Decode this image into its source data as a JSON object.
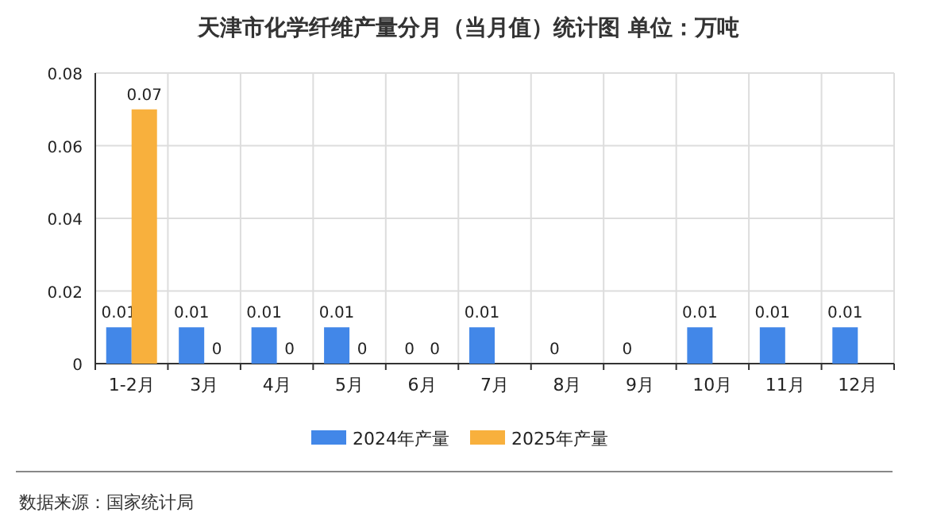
{
  "chart_data": {
    "type": "bar",
    "title": "天津市化学纤维产量分月（当月值）统计图 单位：万吨",
    "categories": [
      "1-2月",
      "3月",
      "4月",
      "5月",
      "6月",
      "7月",
      "8月",
      "9月",
      "10月",
      "11月",
      "12月"
    ],
    "series": [
      {
        "name": "2024年产量",
        "color": "#4287e8",
        "values": [
          0.01,
          0.01,
          0.01,
          0.01,
          0,
          0.01,
          0,
          0,
          0.01,
          0.01,
          0.01
        ]
      },
      {
        "name": "2025年产量",
        "color": "#f8b03d",
        "values": [
          0.07,
          0,
          0,
          0,
          0,
          null,
          null,
          null,
          null,
          null,
          null
        ]
      }
    ],
    "ylim": [
      0,
      0.08
    ],
    "yticks": [
      0,
      0.02,
      0.04,
      0.06,
      0.08
    ],
    "grid": true,
    "legend": "bottom",
    "data_labels": true,
    "annotations": [
      "数据来源：国家统计局"
    ]
  }
}
